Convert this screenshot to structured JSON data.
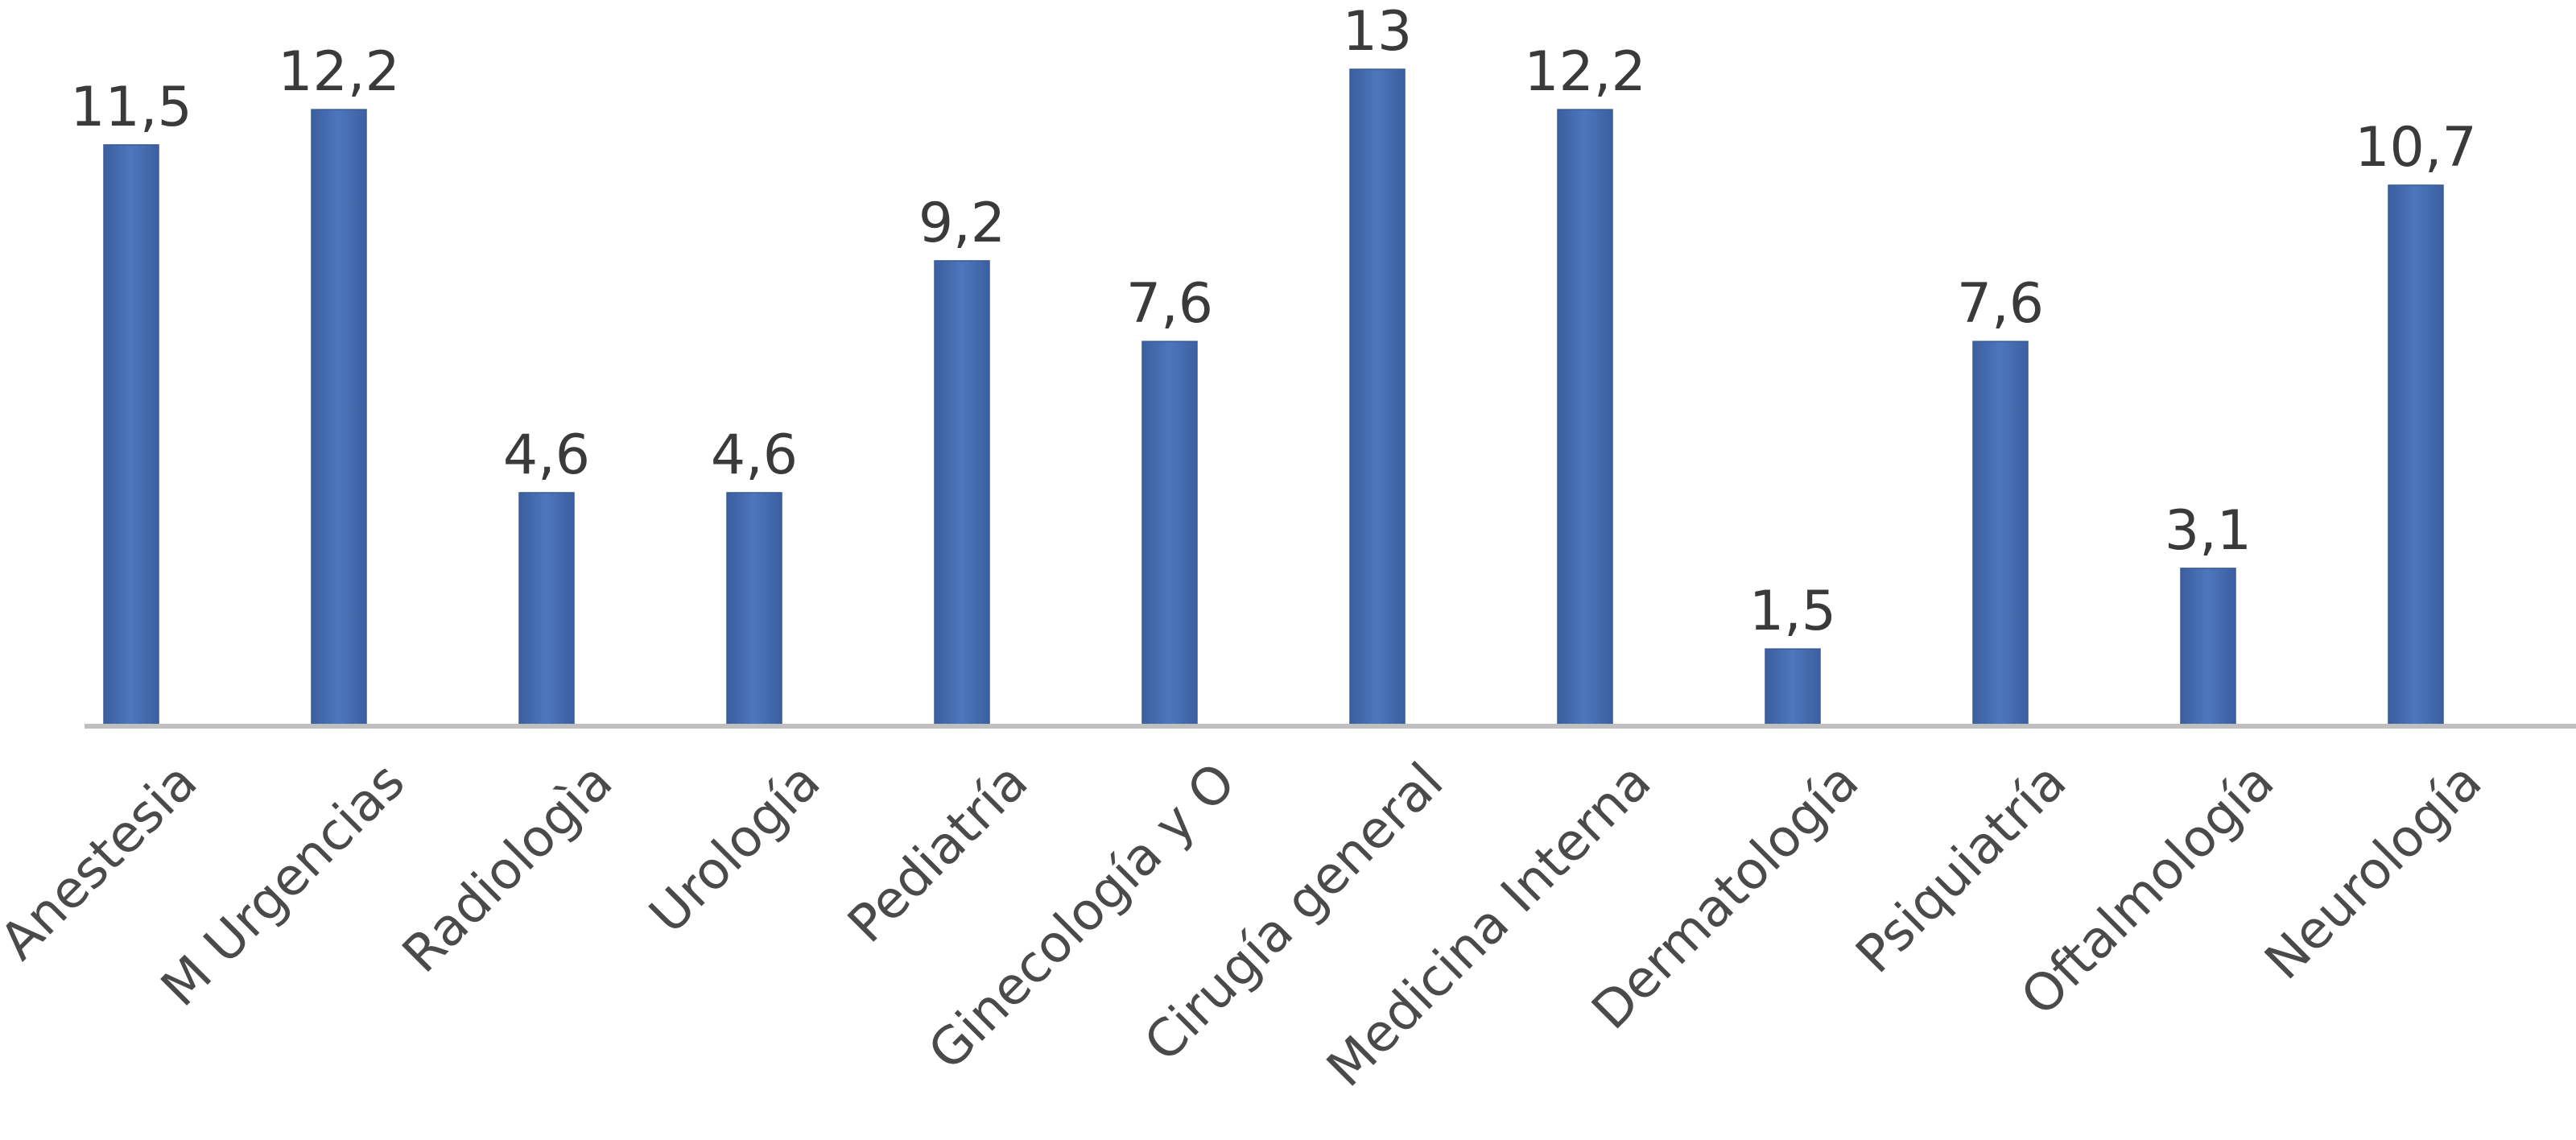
{
  "chart_data": {
    "type": "bar",
    "categories": [
      "Anestesia",
      "M Urgencias",
      "Radiologìa",
      "Urología",
      "Pediatría",
      "Ginecología y O",
      "Cirugía general",
      "Medicina Interna",
      "Dermatología",
      "Psiquiatría",
      "Oftalmología",
      "Neurología"
    ],
    "values": [
      11.5,
      12.2,
      4.6,
      4.6,
      9.2,
      7.6,
      13,
      12.2,
      1.5,
      7.6,
      3.1,
      10.7
    ],
    "data_labels": [
      "11,5",
      "12,2",
      "4,6",
      "4,6",
      "9,2",
      "7,6",
      "13",
      "12,2",
      "1,5",
      "7,6",
      "3,1",
      "10,7"
    ],
    "title": "",
    "xlabel": "",
    "ylabel": "",
    "ylim": [
      0,
      13
    ],
    "grid": false,
    "legend": "none",
    "colors": {
      "bar": "#4a72b8",
      "bar_edge": "#3a5a9a",
      "axis": "#bfbfbf",
      "label_text": "#3a3a3a",
      "category_text": "#4a4a4a"
    }
  }
}
